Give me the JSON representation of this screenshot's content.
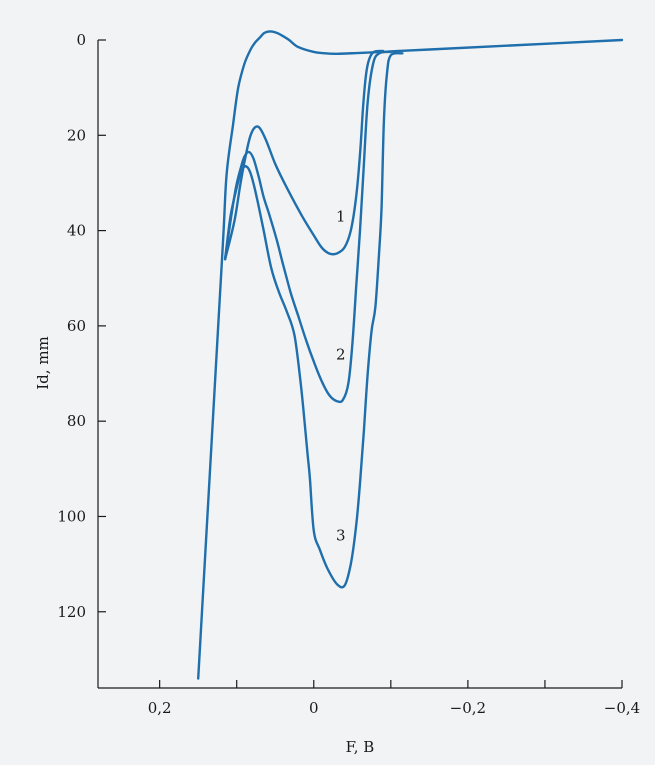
{
  "chart_data": {
    "type": "line",
    "title": "",
    "xlabel": "F, В",
    "ylabel": "Id, mm",
    "xlim": [
      0.28,
      -0.4
    ],
    "ylim": [
      0,
      136
    ],
    "y_inverted": true,
    "grid": false,
    "x_ticks": [
      {
        "value": 0.2,
        "label": "0,2"
      },
      {
        "value": 0,
        "label": "0"
      },
      {
        "value": -0.2,
        "label": "−0,2"
      },
      {
        "value": -0.4,
        "label": "−0,4"
      }
    ],
    "x_minor_ticks": [
      0.1,
      -0.1,
      -0.3
    ],
    "y_ticks": [
      {
        "value": 0,
        "label": "0"
      },
      {
        "value": 20,
        "label": "20"
      },
      {
        "value": 40,
        "label": "40"
      },
      {
        "value": 60,
        "label": "60"
      },
      {
        "value": 80,
        "label": "80"
      },
      {
        "value": 100,
        "label": "100"
      },
      {
        "value": 120,
        "label": "120"
      }
    ],
    "line_color": "#1f6fad",
    "series": [
      {
        "name": "",
        "x": [
          0.15,
          0.124,
          0.117,
          0.113,
          0.105,
          0.098,
          0.09,
          0.082,
          0.076,
          0.07,
          0.064,
          0.056,
          0.048,
          0.042,
          0.032,
          0.02,
          0.0,
          -0.015,
          -0.03,
          -0.06,
          -0.09,
          -0.11,
          -0.15,
          -0.25,
          -0.4
        ],
        "y": [
          134,
          60,
          40,
          28,
          18,
          10,
          5,
          2,
          0.5,
          -0.5,
          -1.5,
          -1.8,
          -1.5,
          -1.0,
          0.0,
          1.5,
          2.5,
          2.8,
          2.9,
          2.7,
          2.5,
          2.3,
          2.0,
          1.2,
          0.0
        ]
      },
      {
        "name": "1",
        "label": "1",
        "label_at": [
          -0.035,
          37
        ],
        "x": [
          0.115,
          0.103,
          0.095,
          0.088,
          0.082,
          0.076,
          0.07,
          0.062,
          0.05,
          0.035,
          0.015,
          0.0,
          -0.01,
          -0.02,
          -0.03,
          -0.04,
          -0.048,
          -0.055,
          -0.06,
          -0.064,
          -0.068,
          -0.072,
          -0.078,
          -0.09
        ],
        "y": [
          46,
          38,
          30,
          24,
          20,
          18.3,
          18.5,
          21,
          26,
          31,
          37,
          41,
          43.5,
          44.8,
          44.8,
          43.5,
          40,
          33,
          24,
          14,
          7,
          4,
          2.5,
          2.3
        ]
      },
      {
        "name": "2",
        "label": "2",
        "label_at": [
          -0.035,
          66
        ],
        "x": [
          0.115,
          0.108,
          0.101,
          0.095,
          0.09,
          0.084,
          0.078,
          0.071,
          0.065,
          0.057,
          0.048,
          0.04,
          0.03,
          0.02,
          0.01,
          0.0,
          -0.01,
          -0.02,
          -0.03,
          -0.038,
          -0.045,
          -0.05,
          -0.055,
          -0.06,
          -0.065,
          -0.07,
          -0.077,
          -0.085,
          -0.1
        ],
        "y": [
          46,
          38,
          31,
          27,
          24.5,
          23.5,
          25,
          29,
          33,
          37,
          42,
          47,
          53,
          58,
          63,
          67.5,
          71.5,
          74.5,
          75.8,
          75.5,
          72,
          64,
          52,
          40,
          26,
          13,
          5,
          2.8,
          2.5
        ]
      },
      {
        "name": "3",
        "label": "3",
        "label_at": [
          -0.035,
          104
        ],
        "x": [
          0.115,
          0.108,
          0.1,
          0.094,
          0.088,
          0.082,
          0.074,
          0.065,
          0.055,
          0.045,
          0.035,
          0.025,
          0.017,
          0.012,
          0.008,
          0.005,
          0.0,
          -0.008,
          -0.018,
          -0.03,
          -0.04,
          -0.048,
          -0.055,
          -0.06,
          -0.065,
          -0.07,
          -0.075,
          -0.08,
          -0.085,
          -0.088,
          -0.091,
          -0.095,
          -0.1,
          -0.115
        ],
        "y": [
          46,
          37,
          31,
          27.5,
          26.5,
          28,
          33,
          40,
          48,
          53,
          57,
          62,
          72,
          80,
          87,
          92,
          103,
          107,
          111,
          114.2,
          114.5,
          110,
          102,
          93,
          82,
          70,
          61,
          56,
          44,
          35,
          17,
          7,
          3.2,
          2.8
        ]
      }
    ]
  }
}
